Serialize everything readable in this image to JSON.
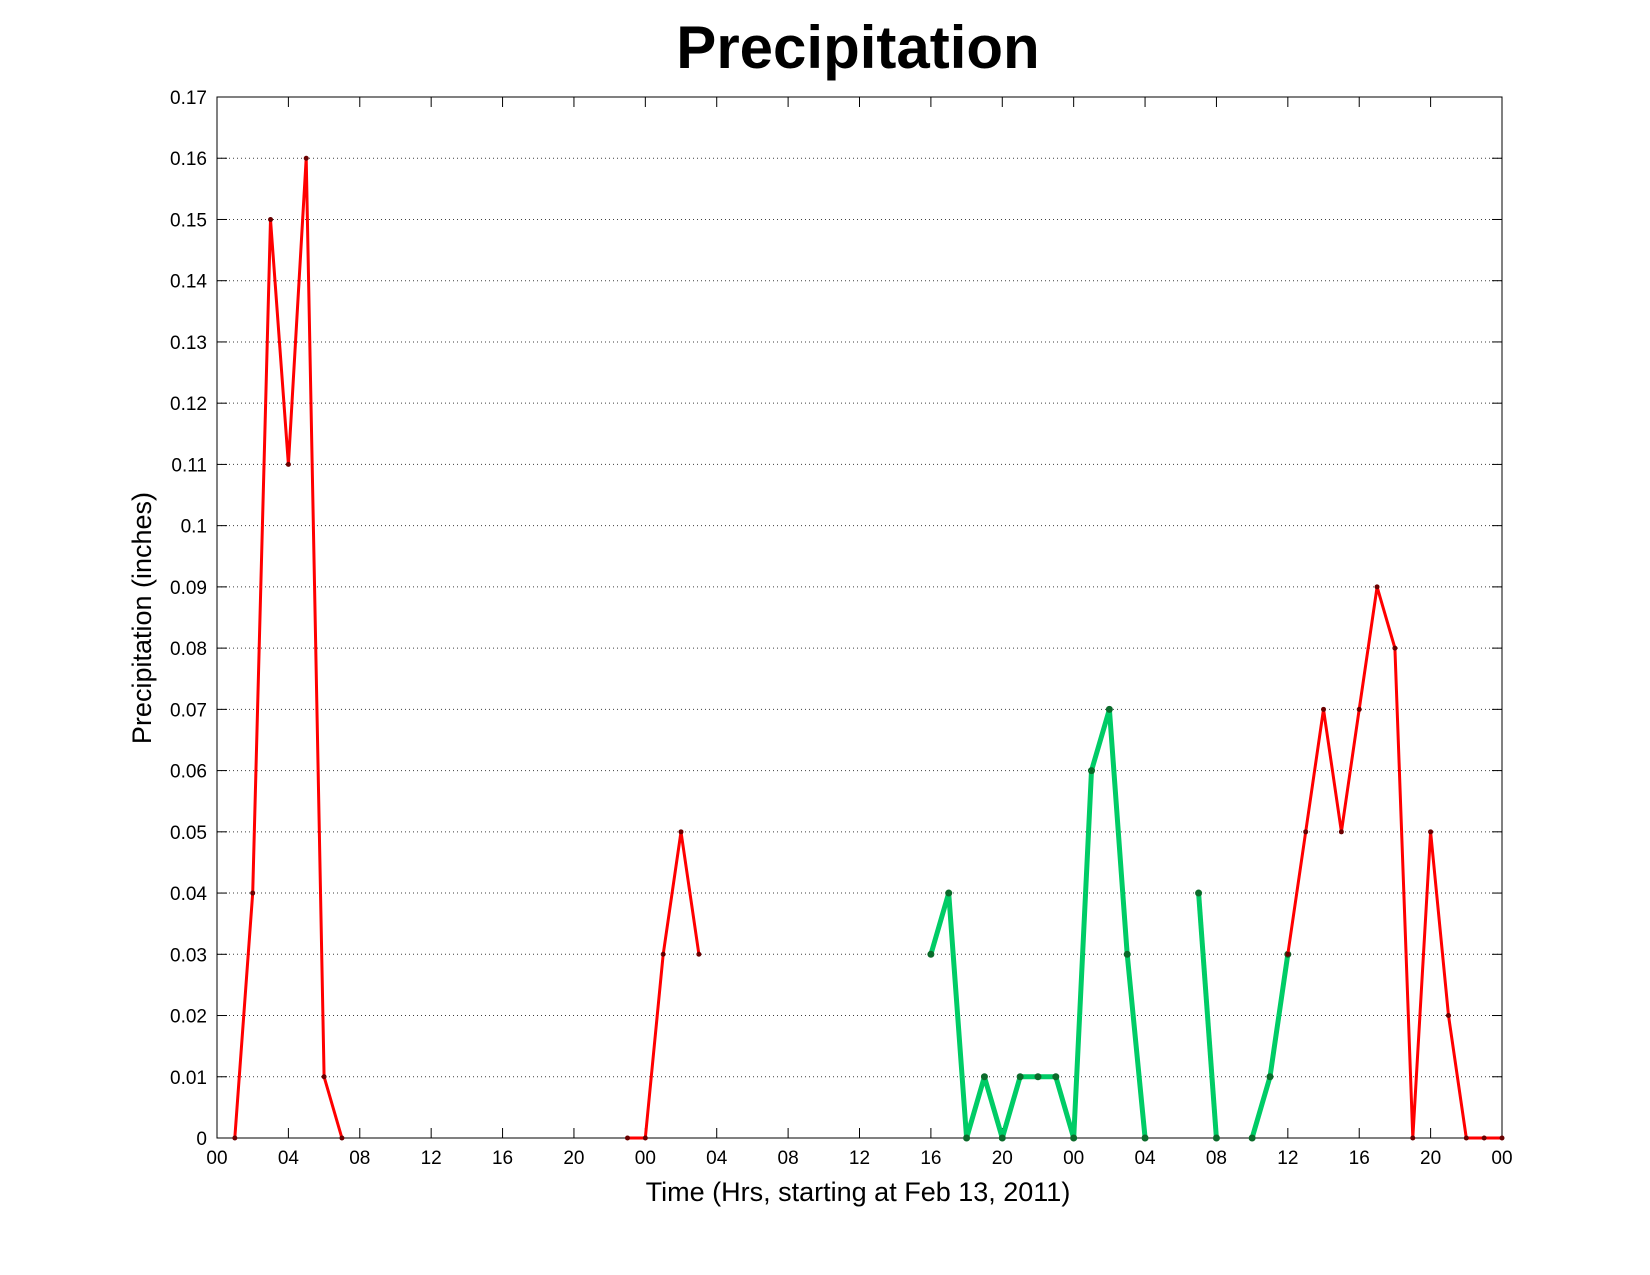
{
  "chart_data": {
    "type": "line",
    "title": "Precipitation",
    "xlabel": "Time (Hrs, starting at Feb 13, 2011)",
    "ylabel": "Precipitation (inches)",
    "xlim": [
      0,
      72
    ],
    "ylim": [
      0,
      0.17
    ],
    "x_unit": "hours",
    "grid": true,
    "y_ticks": [
      "0",
      "0.01",
      "0.02",
      "0.03",
      "0.04",
      "0.05",
      "0.06",
      "0.07",
      "0.08",
      "0.09",
      "0.1",
      "0.11",
      "0.12",
      "0.13",
      "0.14",
      "0.15",
      "0.16",
      "0.17"
    ],
    "x_ticks": [
      {
        "x": 0,
        "label": "00"
      },
      {
        "x": 4,
        "label": "04"
      },
      {
        "x": 8,
        "label": "08"
      },
      {
        "x": 12,
        "label": "12"
      },
      {
        "x": 16,
        "label": "16"
      },
      {
        "x": 20,
        "label": "20"
      },
      {
        "x": 24,
        "label": "00"
      },
      {
        "x": 28,
        "label": "04"
      },
      {
        "x": 32,
        "label": "08"
      },
      {
        "x": 36,
        "label": "12"
      },
      {
        "x": 40,
        "label": "16"
      },
      {
        "x": 44,
        "label": "20"
      },
      {
        "x": 48,
        "label": "00"
      },
      {
        "x": 52,
        "label": "04"
      },
      {
        "x": 56,
        "label": "08"
      },
      {
        "x": 60,
        "label": "12"
      },
      {
        "x": 64,
        "label": "16"
      },
      {
        "x": 68,
        "label": "20"
      },
      {
        "x": 72,
        "label": "00"
      }
    ],
    "series": [
      {
        "color": "#ff0000",
        "width": 3,
        "x": [
          1,
          2,
          3,
          4,
          5,
          6,
          7
        ],
        "y": [
          0,
          0.04,
          0.15,
          0.11,
          0.16,
          0.01,
          0
        ]
      },
      {
        "color": "#ff0000",
        "width": 3,
        "x": [
          23,
          24,
          25,
          26,
          27
        ],
        "y": [
          0,
          0,
          0.03,
          0.05,
          0.03
        ]
      },
      {
        "color": "#00cc66",
        "width": 5,
        "x": [
          40,
          41,
          42,
          43,
          44,
          45,
          46,
          47,
          48,
          49,
          50,
          51,
          52
        ],
        "y": [
          0.03,
          0.04,
          0,
          0.01,
          0,
          0.01,
          0.01,
          0.01,
          0,
          0.06,
          0.07,
          0.03,
          0
        ]
      },
      {
        "color": "#00cc66",
        "width": 5,
        "x": [
          55,
          56
        ],
        "y": [
          0.04,
          0
        ]
      },
      {
        "color": "#00cc66",
        "width": 5,
        "x": [
          58,
          59,
          60
        ],
        "y": [
          0,
          0.01,
          0.03
        ]
      },
      {
        "color": "#ff0000",
        "width": 3,
        "x": [
          60,
          61,
          62,
          63,
          64,
          65,
          66,
          67,
          68,
          69,
          70,
          71,
          72
        ],
        "y": [
          0.03,
          0.05,
          0.07,
          0.05,
          0.07,
          0.09,
          0.08,
          0,
          0.05,
          0.02,
          0,
          0,
          0
        ]
      }
    ]
  }
}
